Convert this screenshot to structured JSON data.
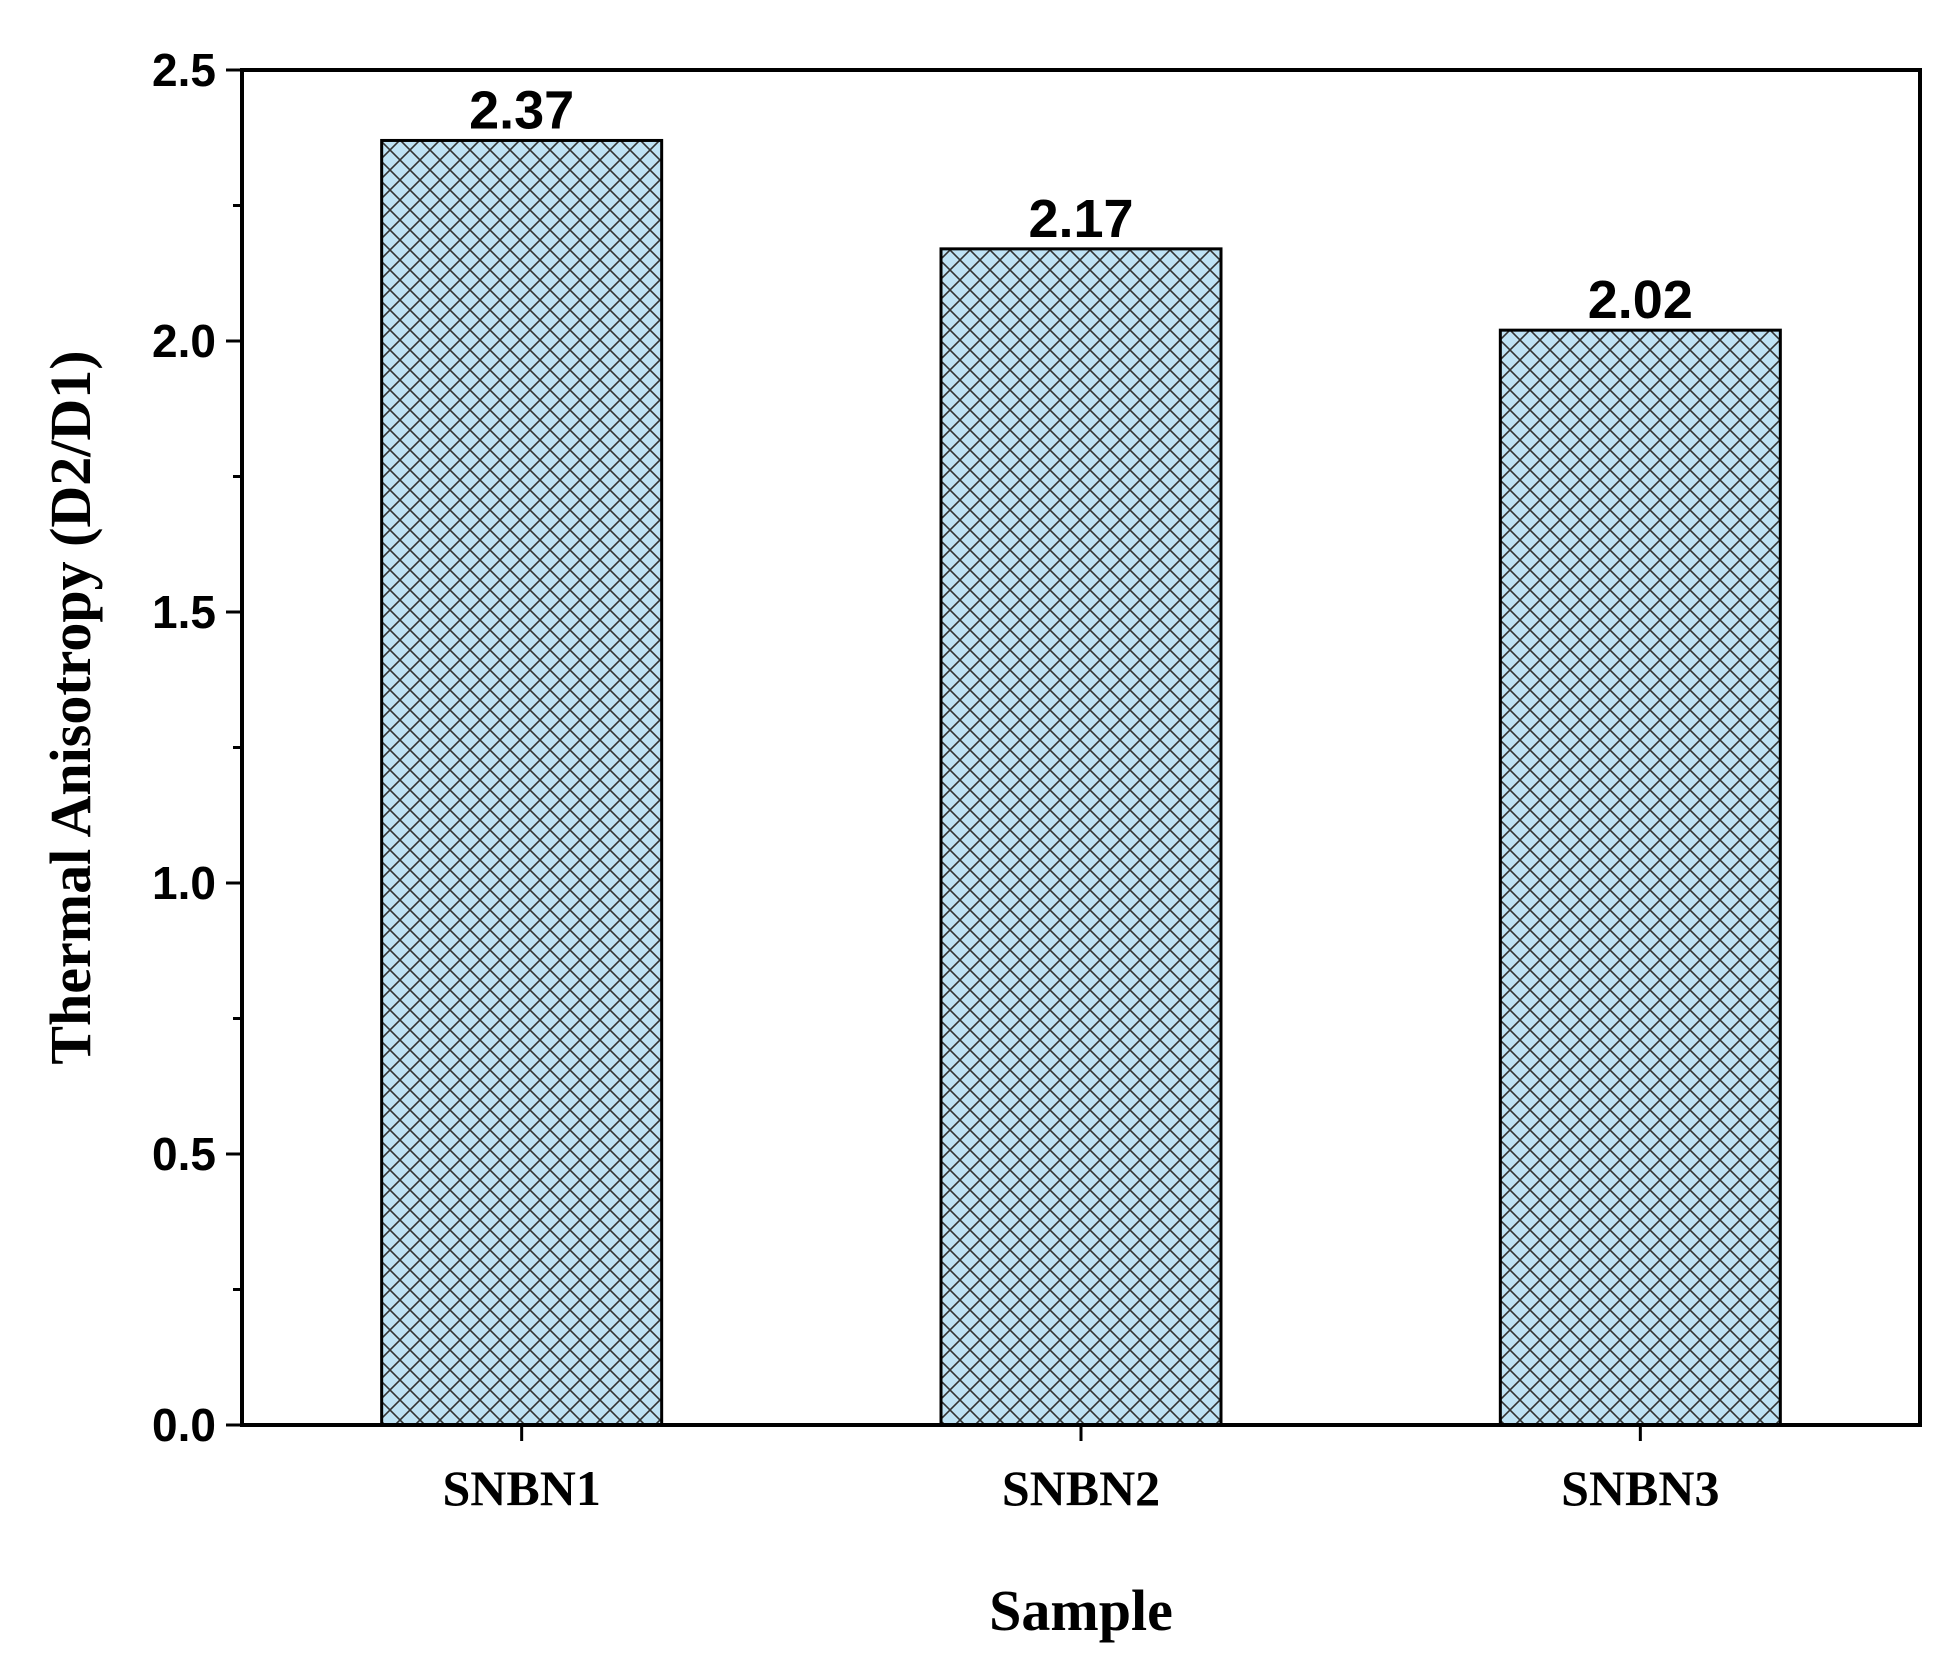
{
  "chart_data": {
    "type": "bar",
    "title": "",
    "xlabel": "Sample",
    "ylabel": "Thermal Anisotropy (D2/D1)",
    "categories": [
      "SNBN1",
      "SNBN2",
      "SNBN3"
    ],
    "values": [
      2.37,
      2.17,
      2.02
    ],
    "data_labels": [
      "2.37",
      "2.17",
      "2.02"
    ],
    "ylim": [
      0,
      2.5
    ],
    "y_ticks": [
      0.0,
      0.5,
      1.0,
      1.5,
      2.0,
      2.5
    ],
    "y_tick_labels": [
      "0.0",
      "0.5",
      "1.0",
      "1.5",
      "2.0",
      "2.5"
    ],
    "grid": false,
    "legend": "none",
    "bar_fill_color": "#bfe3f5",
    "bar_hatch": "crosshatch",
    "bar_hatch_color": "#333333",
    "bar_edge_color": "#000000"
  }
}
